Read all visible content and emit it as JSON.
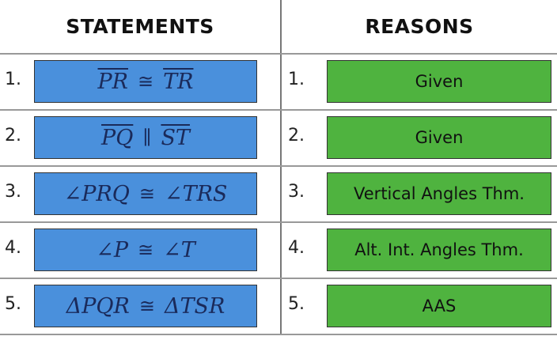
{
  "header": {
    "statements": "STATEMENTS",
    "reasons": "REASONS"
  },
  "rows": [
    {
      "number": "1.",
      "statement": {
        "left": "PR",
        "relation": "≅",
        "right": "TR",
        "overline": true
      },
      "reason": "Given"
    },
    {
      "number": "2.",
      "statement": {
        "left": "PQ",
        "relation": "∥",
        "right": "ST",
        "overline": true
      },
      "reason": "Given"
    },
    {
      "number": "3.",
      "statement": {
        "left": "∠PRQ",
        "relation": "≅",
        "right": "∠TRS",
        "overline": false
      },
      "reason": "Vertical Angles Thm."
    },
    {
      "number": "4.",
      "statement": {
        "left": "∠P",
        "relation": "≅",
        "right": "∠T",
        "overline": false
      },
      "reason": "Alt. Int. Angles Thm."
    },
    {
      "number": "5.",
      "statement": {
        "left": "ΔPQR",
        "relation": "≅",
        "right": "ΔTSR",
        "overline": false
      },
      "reason": "AAS"
    }
  ]
}
